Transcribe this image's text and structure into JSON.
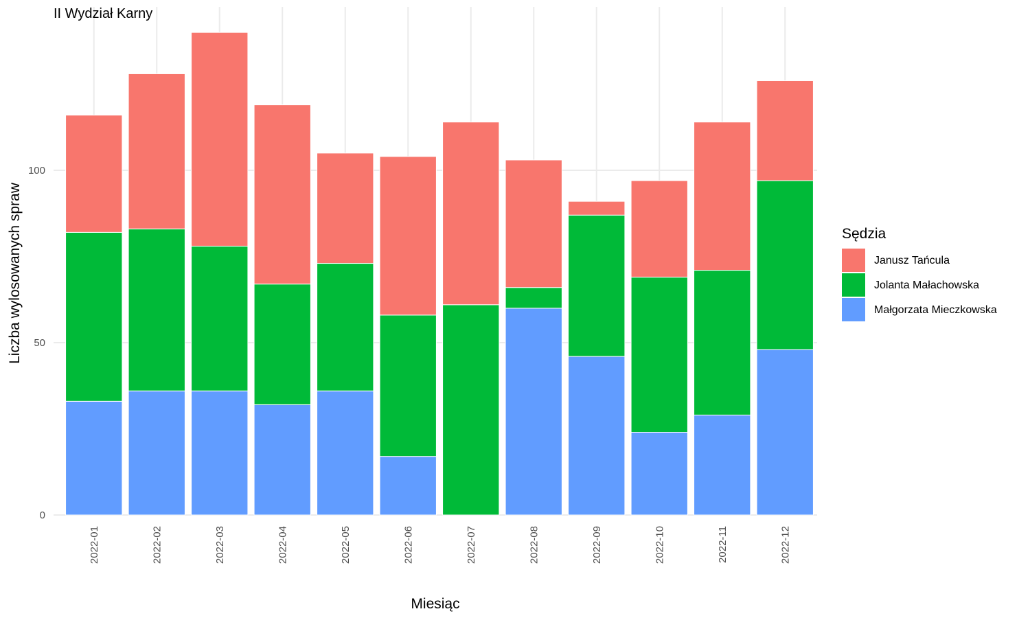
{
  "chart_data": {
    "type": "bar",
    "stacked": true,
    "title": "II Wydział Karny",
    "xlabel": "Miesiąc",
    "ylabel": "Liczba wylosowanych spraw",
    "ylim": [
      0,
      140
    ],
    "y_ticks": [
      0,
      50,
      100
    ],
    "grid": true,
    "legend_position": "right",
    "categories": [
      "2022-01",
      "2022-02",
      "2022-03",
      "2022-04",
      "2022-05",
      "2022-06",
      "2022-07",
      "2022-08",
      "2022-09",
      "2022-10",
      "2022-11",
      "2022-12"
    ],
    "legend": {
      "title": "Sędzia",
      "items": [
        "Janusz Tańcula",
        "Jolanta Małachowska",
        "Małgorzata Mieczkowska"
      ]
    },
    "series": [
      {
        "name": "Małgorzata Mieczkowska",
        "color": "#619CFF",
        "values": [
          33,
          36,
          36,
          32,
          36,
          17,
          0,
          60,
          46,
          24,
          29,
          48
        ]
      },
      {
        "name": "Jolanta Małachowska",
        "color": "#00BA38",
        "values": [
          49,
          47,
          42,
          35,
          37,
          41,
          61,
          6,
          41,
          45,
          42,
          49
        ]
      },
      {
        "name": "Janusz Tańcula",
        "color": "#F8766D",
        "values": [
          34,
          45,
          62,
          52,
          32,
          46,
          53,
          37,
          4,
          28,
          43,
          29
        ]
      }
    ]
  }
}
